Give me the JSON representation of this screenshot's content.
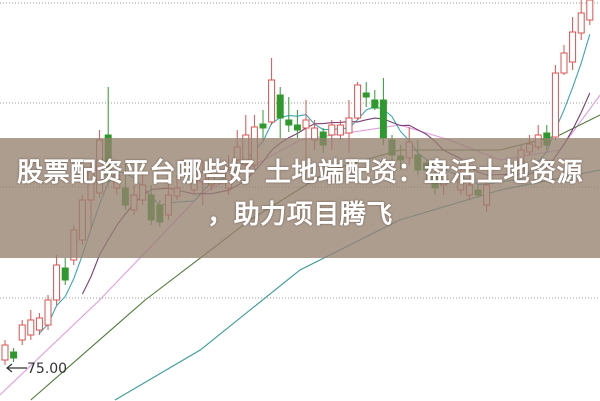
{
  "headline": {
    "line1": "股票配资平台哪些好 土地端配资：盘活土地资源",
    "line2": "，助力项目腾飞"
  },
  "chart_data": {
    "type": "candlestick",
    "title": "",
    "low_marker_label": "75.00",
    "grid": true,
    "gridlines": [
      111.5,
      101.5,
      93.1,
      82.0
    ],
    "colors": {
      "up": "#d9534f",
      "down": "#2e9a2e",
      "ma_short": "#3aa7b8",
      "ma_mid": "#7a3f74",
      "ma_pink": "#e39be0",
      "ma_green": "#4f7a3a",
      "ma_teal": "#3a9a9a",
      "banner": "#968270"
    },
    "candles": [
      {
        "day": 0,
        "o": 75.8,
        "h": 77.8,
        "l": 75.3,
        "c": 77.3
      },
      {
        "day": 1,
        "o": 76.6,
        "h": 77.0,
        "l": 75.6,
        "c": 76.0
      },
      {
        "day": 2,
        "o": 77.8,
        "h": 79.8,
        "l": 77.3,
        "c": 79.3
      },
      {
        "day": 3,
        "o": 78.3,
        "h": 80.8,
        "l": 77.8,
        "c": 79.8
      },
      {
        "day": 4,
        "o": 78.8,
        "h": 80.5,
        "l": 78.3,
        "c": 80.0
      },
      {
        "day": 5,
        "o": 79.3,
        "h": 82.3,
        "l": 78.8,
        "c": 81.8
      },
      {
        "day": 6,
        "o": 81.8,
        "h": 86.3,
        "l": 81.3,
        "c": 85.3
      },
      {
        "day": 7,
        "o": 85.0,
        "h": 86.0,
        "l": 83.3,
        "c": 83.8
      },
      {
        "day": 8,
        "o": 85.8,
        "h": 89.3,
        "l": 85.3,
        "c": 88.8
      },
      {
        "day": 9,
        "o": 87.8,
        "h": 92.3,
        "l": 87.3,
        "c": 91.8
      },
      {
        "day": 10,
        "o": 91.8,
        "h": 95.8,
        "l": 88.8,
        "c": 94.8
      },
      {
        "day": 11,
        "o": 92.5,
        "h": 98.8,
        "l": 92.0,
        "c": 97.8
      },
      {
        "day": 12,
        "o": 98.3,
        "h": 103.1,
        "l": 93.3,
        "c": 94.3
      },
      {
        "day": 13,
        "o": 93.0,
        "h": 95.3,
        "l": 92.3,
        "c": 94.3
      },
      {
        "day": 14,
        "o": 93.0,
        "h": 95.8,
        "l": 90.8,
        "c": 91.3
      },
      {
        "day": 15,
        "o": 90.8,
        "h": 93.3,
        "l": 90.3,
        "c": 92.3
      },
      {
        "day": 16,
        "o": 91.8,
        "h": 94.8,
        "l": 91.3,
        "c": 93.3
      },
      {
        "day": 17,
        "o": 92.3,
        "h": 93.3,
        "l": 89.3,
        "c": 89.8
      },
      {
        "day": 18,
        "o": 91.3,
        "h": 91.8,
        "l": 89.1,
        "c": 89.6
      },
      {
        "day": 19,
        "o": 90.3,
        "h": 93.8,
        "l": 89.8,
        "c": 92.3
      },
      {
        "day": 20,
        "o": 92.2,
        "h": 94.3,
        "l": 91.8,
        "c": 93.0
      },
      {
        "day": 22,
        "o": 92.8,
        "h": 95.3,
        "l": 92.3,
        "c": 93.8
      },
      {
        "day": 23,
        "o": 93.6,
        "h": 95.8,
        "l": 91.3,
        "c": 94.6
      },
      {
        "day": 24,
        "o": 93.3,
        "h": 95.3,
        "l": 92.8,
        "c": 94.3
      },
      {
        "day": 26,
        "o": 93.0,
        "h": 96.3,
        "l": 92.3,
        "c": 94.8
      },
      {
        "day": 27,
        "o": 95.8,
        "h": 98.8,
        "l": 95.3,
        "c": 97.1
      },
      {
        "day": 28,
        "o": 95.3,
        "h": 100.3,
        "l": 94.8,
        "c": 98.3
      },
      {
        "day": 29,
        "o": 95.3,
        "h": 100.3,
        "l": 94.8,
        "c": 99.1
      },
      {
        "day": 30,
        "o": 99.4,
        "h": 100.8,
        "l": 97.8,
        "c": 99.0
      },
      {
        "day": 31,
        "o": 99.6,
        "h": 106.0,
        "l": 99.3,
        "c": 103.8
      },
      {
        "day": 32,
        "o": 102.3,
        "h": 103.1,
        "l": 98.0,
        "c": 100.0
      },
      {
        "day": 33,
        "o": 99.8,
        "h": 102.1,
        "l": 98.6,
        "c": 99.3
      },
      {
        "day": 34,
        "o": 99.3,
        "h": 100.8,
        "l": 98.0,
        "c": 98.8
      },
      {
        "day": 35,
        "o": 99.0,
        "h": 101.8,
        "l": 95.8,
        "c": 99.8
      },
      {
        "day": 36,
        "o": 97.8,
        "h": 99.8,
        "l": 96.8,
        "c": 99.0
      },
      {
        "day": 37,
        "o": 98.6,
        "h": 99.0,
        "l": 96.5,
        "c": 97.3
      },
      {
        "day": 38,
        "o": 98.3,
        "h": 99.8,
        "l": 96.8,
        "c": 99.3
      },
      {
        "day": 39,
        "o": 98.3,
        "h": 99.8,
        "l": 97.8,
        "c": 99.3
      },
      {
        "day": 40,
        "o": 98.5,
        "h": 101.8,
        "l": 96.5,
        "c": 100.0
      },
      {
        "day": 41,
        "o": 100.0,
        "h": 103.6,
        "l": 99.8,
        "c": 103.3
      },
      {
        "day": 42,
        "o": 102.5,
        "h": 103.6,
        "l": 101.1,
        "c": 102.1
      },
      {
        "day": 43,
        "o": 101.8,
        "h": 102.8,
        "l": 100.8,
        "c": 101.0
      },
      {
        "day": 44,
        "o": 101.8,
        "h": 104.0,
        "l": 97.3,
        "c": 98.0
      },
      {
        "day": 45,
        "o": 97.8,
        "h": 98.3,
        "l": 95.8,
        "c": 96.3
      },
      {
        "day": 46,
        "o": 96.2,
        "h": 97.3,
        "l": 94.8,
        "c": 95.8
      },
      {
        "day": 47,
        "o": 96.0,
        "h": 99.1,
        "l": 95.3,
        "c": 97.6
      },
      {
        "day": 48,
        "o": 96.3,
        "h": 97.8,
        "l": 94.3,
        "c": 94.8
      },
      {
        "day": 49,
        "o": 95.5,
        "h": 95.8,
        "l": 93.8,
        "c": 94.8
      },
      {
        "day": 50,
        "o": 94.3,
        "h": 94.8,
        "l": 92.3,
        "c": 93.0
      },
      {
        "day": 51,
        "o": 93.3,
        "h": 95.3,
        "l": 92.3,
        "c": 94.3
      },
      {
        "day": 53,
        "o": 92.8,
        "h": 95.3,
        "l": 92.3,
        "c": 93.8
      },
      {
        "day": 54,
        "o": 92.3,
        "h": 94.3,
        "l": 91.8,
        "c": 93.3
      },
      {
        "day": 55,
        "o": 92.8,
        "h": 93.3,
        "l": 92.0,
        "c": 92.3
      },
      {
        "day": 56,
        "o": 91.3,
        "h": 93.8,
        "l": 90.6,
        "c": 93.3
      },
      {
        "day": 60,
        "o": 94.8,
        "h": 97.3,
        "l": 94.3,
        "c": 96.8
      },
      {
        "day": 61,
        "o": 96.6,
        "h": 98.3,
        "l": 96.3,
        "c": 97.4
      },
      {
        "day": 62,
        "o": 97.1,
        "h": 99.3,
        "l": 96.8,
        "c": 98.3
      },
      {
        "day": 63,
        "o": 98.5,
        "h": 99.3,
        "l": 96.8,
        "c": 97.3
      },
      {
        "day": 64,
        "o": 98.1,
        "h": 105.3,
        "l": 97.8,
        "c": 104.5
      },
      {
        "day": 65,
        "o": 104.5,
        "h": 107.3,
        "l": 104.3,
        "c": 106.5
      },
      {
        "day": 66,
        "o": 105.6,
        "h": 110.1,
        "l": 104.8,
        "c": 108.6
      },
      {
        "day": 67,
        "o": 108.5,
        "h": 111.8,
        "l": 107.8,
        "c": 110.5
      },
      {
        "day": 68,
        "o": 109.8,
        "h": 111.8,
        "l": 109.3,
        "c": 111.8
      }
    ],
    "ma_lines": [
      {
        "color_key": "ma_pink",
        "points": [
          [
            -0.6,
            72.3
          ],
          [
            11,
            81.8
          ],
          [
            22.7,
            92.3
          ],
          [
            34.3,
            97.8
          ],
          [
            45.9,
            99.3
          ],
          [
            51.7,
            97.8
          ],
          [
            57.6,
            95.8
          ],
          [
            64.5,
            96.8
          ],
          [
            69.2,
            102.3
          ]
        ]
      },
      {
        "color_key": "ma_green",
        "points": [
          [
            3,
            71.8
          ],
          [
            16.3,
            81.8
          ],
          [
            28.5,
            89.8
          ],
          [
            37.8,
            94.8
          ],
          [
            45.9,
            96.8
          ],
          [
            57.6,
            96.8
          ],
          [
            64.5,
            98.3
          ],
          [
            69.2,
            100.3
          ]
        ]
      },
      {
        "color_key": "ma_teal",
        "points": [
          [
            12.8,
            71.8
          ],
          [
            22.7,
            76.8
          ],
          [
            34.3,
            84.8
          ],
          [
            45.9,
            89.8
          ],
          [
            57.6,
            92.8
          ],
          [
            69.2,
            94.8
          ]
        ]
      }
    ],
    "computed_ma_periods": [
      5,
      10
    ]
  }
}
